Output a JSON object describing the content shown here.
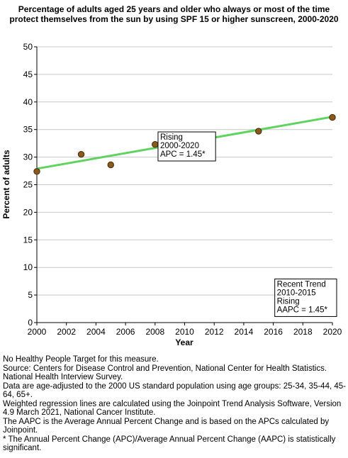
{
  "chart_data": {
    "type": "line",
    "title": "Percentage of adults aged 25 years and older who always or most of the time protect themselves from the sun by using SPF 15 or higher sunscreen, 2000-2020",
    "xlabel": "Year",
    "ylabel": "Percent of adults",
    "xlim": [
      2000,
      2020
    ],
    "ylim": [
      0,
      50
    ],
    "x_ticks": [
      2000,
      2002,
      2004,
      2006,
      2008,
      2010,
      2012,
      2014,
      2016,
      2018,
      2020
    ],
    "y_ticks": [
      0,
      5,
      10,
      15,
      20,
      25,
      30,
      35,
      40,
      45,
      50
    ],
    "grid": "horizontal",
    "series": [
      {
        "kind": "observed",
        "x": [
          2000,
          2003,
          2005,
          2008,
          2010,
          2015,
          2020
        ],
        "y": [
          27.4,
          30.5,
          28.6,
          32.3,
          32.2,
          34.7,
          37.2
        ],
        "color": "#8b5a1b"
      },
      {
        "kind": "regression",
        "x": [
          2000,
          2020
        ],
        "y": [
          27.9,
          37.3
        ],
        "color": "#5fd35f"
      }
    ],
    "annotations": [
      {
        "lines": [
          "Rising",
          "2000-2020",
          "APC =  1.45*"
        ],
        "x": 2008.2,
        "y": 29.3
      },
      {
        "lines": [
          "Recent Trend",
          "2010-2015",
          "Rising",
          "AAPC =  1.45*"
        ],
        "x": 2016.1,
        "y": 1.1
      }
    ]
  },
  "notes": [
    "No Healthy People Target for this measure.",
    "Source: Centers for Disease Control and Prevention, National Center for Health Statistics. National Health Interview Survey.",
    "Data are age-adjusted to the 2000 US standard population using age groups: 25-34, 35-44, 45-64, 65+.",
    "Weighted regression lines are calculated using the Joinpoint Trend Analysis Software, Version 4.9 March 2021, National Cancer Institute.",
    "The AAPC is the Average Annual Percent Change and is based on the APCs calculated by Joinpoint.",
    "* The Annual Percent Change (APC)/Average Annual Percent Change (AAPC) is statistically significant."
  ]
}
